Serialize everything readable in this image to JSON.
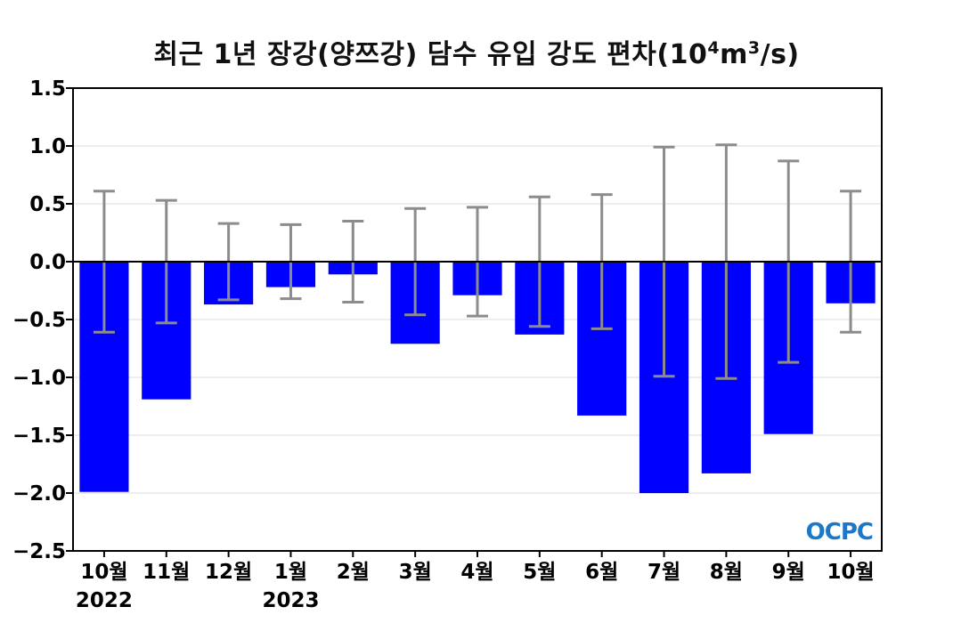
{
  "title": {
    "prefix": "최근 1년 장강(양쯔강) 담수 유입 강도 편차(10",
    "exp1": "4",
    "mid": "m",
    "exp2": "3",
    "suffix": "/s)"
  },
  "logo_text": "OCPC",
  "colors": {
    "bar": "#0000ff",
    "error": "#8c8c8c",
    "axis": "#000000",
    "grid": "#dcdcdc",
    "logo": "#1e78c8"
  },
  "chart_data": {
    "type": "bar",
    "title": "최근 1년 장강(양쯔강) 담수 유입 강도 편차(10⁴m³/s)",
    "categories": [
      "10월",
      "11월",
      "12월",
      "1월",
      "2월",
      "3월",
      "4월",
      "5월",
      "6월",
      "7월",
      "8월",
      "9월",
      "10월"
    ],
    "year_labels": [
      "2022",
      "",
      "",
      "2023",
      "",
      "",
      "",
      "",
      "",
      "",
      "",
      "",
      ""
    ],
    "values": [
      -1.99,
      -1.19,
      -0.37,
      -0.22,
      -0.11,
      -0.71,
      -0.29,
      -0.63,
      -1.33,
      -2.0,
      -1.83,
      -1.49,
      -0.36
    ],
    "error": [
      0.61,
      0.53,
      0.33,
      0.32,
      0.35,
      0.46,
      0.47,
      0.56,
      0.58,
      0.99,
      1.01,
      0.87,
      0.61
    ],
    "ylim": [
      -2.5,
      1.5
    ],
    "yticks": [
      "1.5",
      "1.0",
      "0.5",
      "0.0",
      "−0.5",
      "−1.0",
      "−1.5",
      "−2.0",
      "−2.5"
    ],
    "ytick_values": [
      1.5,
      1.0,
      0.5,
      0.0,
      -0.5,
      -1.0,
      -1.5,
      -2.0,
      -2.5
    ],
    "grid": true,
    "xlabel": "",
    "ylabel": ""
  }
}
